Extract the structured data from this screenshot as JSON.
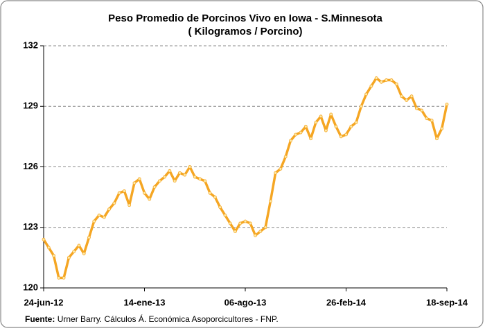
{
  "chart_data": {
    "type": "line",
    "title": "Peso Promedio de Porcinos Vivo en Iowa - S.Minnesota",
    "subtitle": "( Kilogramos / Porcino)",
    "categories": [
      "24-jun-12",
      null,
      null,
      null,
      null,
      null,
      null,
      null,
      null,
      null,
      null,
      null,
      null,
      null,
      null,
      null,
      null,
      null,
      null,
      null,
      "14-ene-13",
      null,
      null,
      null,
      null,
      null,
      null,
      null,
      null,
      null,
      null,
      null,
      null,
      null,
      null,
      null,
      null,
      null,
      null,
      null,
      "06-ago-13",
      null,
      null,
      null,
      null,
      null,
      null,
      null,
      null,
      null,
      null,
      null,
      null,
      null,
      null,
      null,
      null,
      null,
      null,
      null,
      "26-feb-14",
      null,
      null,
      null,
      null,
      null,
      null,
      null,
      null,
      null,
      null,
      null,
      null,
      null,
      null,
      null,
      null,
      null,
      null,
      null,
      "18-sep-14"
    ],
    "series": [
      {
        "name": "Peso",
        "color": "#f5a623",
        "values": [
          122.4,
          122.0,
          121.6,
          120.5,
          120.5,
          121.5,
          121.8,
          122.1,
          121.7,
          122.5,
          123.3,
          123.6,
          123.5,
          123.9,
          124.2,
          124.7,
          124.8,
          124.1,
          125.2,
          125.4,
          124.7,
          124.4,
          125.0,
          125.3,
          125.5,
          125.8,
          125.3,
          125.7,
          125.6,
          126.0,
          125.5,
          125.4,
          125.3,
          124.7,
          124.5,
          124.0,
          123.6,
          123.2,
          122.8,
          123.2,
          123.3,
          123.2,
          122.6,
          122.8,
          123.0,
          124.3,
          125.7,
          125.9,
          126.5,
          127.3,
          127.6,
          127.7,
          128.0,
          127.4,
          128.2,
          128.5,
          127.8,
          128.6,
          128.0,
          127.5,
          127.6,
          128.0,
          128.2,
          129.0,
          129.6,
          130.0,
          130.4,
          130.2,
          130.3,
          130.3,
          130.1,
          129.5,
          129.3,
          129.5,
          128.9,
          128.8,
          128.4,
          128.3,
          127.4,
          127.9,
          129.1
        ]
      }
    ],
    "ylim": [
      120,
      132
    ],
    "yticks": [
      120,
      123,
      126,
      129,
      132
    ],
    "grid": true,
    "source_label": "Fuente:",
    "source": "Urner Barry. Cálculos Á. Económica Asoporcicultores - FNP."
  }
}
